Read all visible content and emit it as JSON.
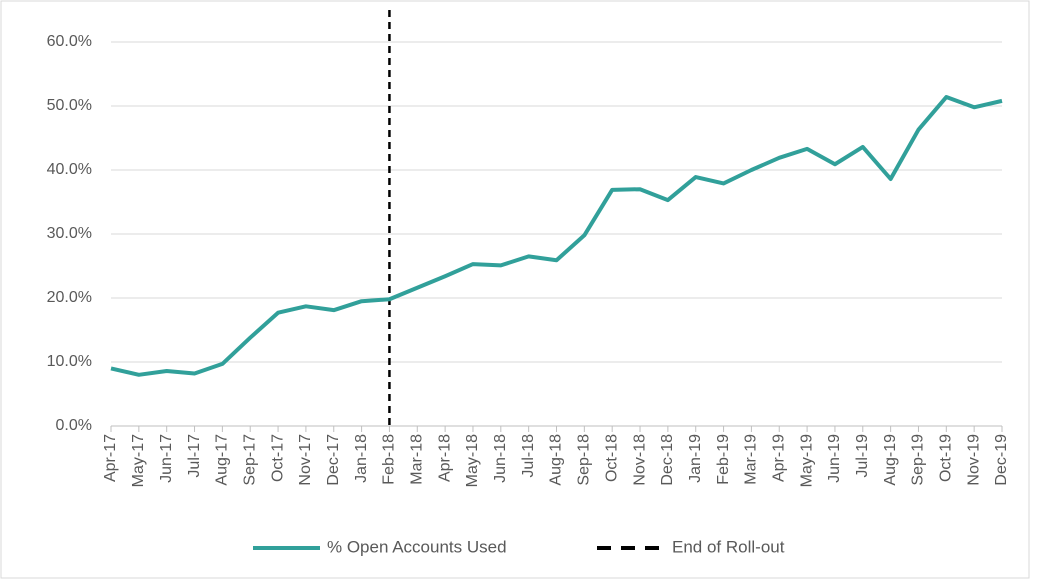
{
  "chart_data": {
    "type": "line",
    "categories": [
      "Apr-17",
      "May-17",
      "Jun-17",
      "Jul-17",
      "Aug-17",
      "Sep-17",
      "Oct-17",
      "Nov-17",
      "Dec-17",
      "Jan-18",
      "Feb-18",
      "Mar-18",
      "Apr-18",
      "May-18",
      "Jun-18",
      "Jul-18",
      "Aug-18",
      "Sep-18",
      "Oct-18",
      "Nov-18",
      "Dec-18",
      "Jan-19",
      "Feb-19",
      "Mar-19",
      "Apr-19",
      "May-19",
      "Jun-19",
      "Jul-19",
      "Aug-19",
      "Sep-19",
      "Oct-19",
      "Nov-19",
      "Dec-19"
    ],
    "series": [
      {
        "name": "% Open Accounts Used",
        "color": "#31a09a",
        "values": [
          9.0,
          8.0,
          8.6,
          8.2,
          9.7,
          13.8,
          17.7,
          18.7,
          18.1,
          19.5,
          19.8,
          21.6,
          23.4,
          25.3,
          25.1,
          26.5,
          25.9,
          29.8,
          36.9,
          37.0,
          35.3,
          38.9,
          37.9,
          40.0,
          41.9,
          43.3,
          40.9,
          43.6,
          38.6,
          46.3,
          51.4,
          49.8,
          50.8
        ]
      }
    ],
    "vlines": [
      {
        "name": "End of Roll-out",
        "x": "Feb-18",
        "color": "#000000"
      }
    ],
    "ylim": [
      0,
      60
    ],
    "yticks": [
      {
        "value": 0,
        "label": "0.0%"
      },
      {
        "value": 10,
        "label": "10.0%"
      },
      {
        "value": 20,
        "label": "20.0%"
      },
      {
        "value": 30,
        "label": "30.0%"
      },
      {
        "value": 40,
        "label": "40.0%"
      },
      {
        "value": 50,
        "label": "50.0%"
      },
      {
        "value": 60,
        "label": "60.0%"
      }
    ],
    "grid": true,
    "legend": "bottom"
  }
}
